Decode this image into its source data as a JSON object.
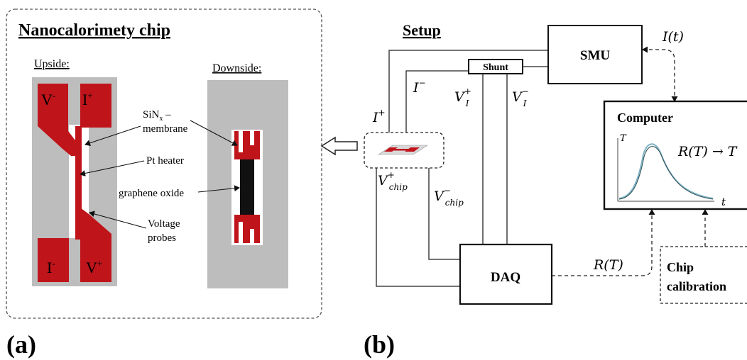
{
  "panel_a": {
    "title": "Nanocalorimety chip",
    "upside_label": "Upside:",
    "downside_label": "Downside:",
    "pad_v_minus": "V",
    "pad_v_minus_sup": "-",
    "pad_i_plus": "I",
    "pad_i_plus_sup": "+",
    "pad_i_minus": "I",
    "pad_i_minus_sup": "-",
    "pad_v_plus": "V",
    "pad_v_plus_sup": "+",
    "annot_membrane_1": "SiN",
    "annot_membrane_sub": "x",
    "annot_membrane_dash": " –",
    "annot_membrane_2": "membrane",
    "annot_heater": "Pt heater",
    "annot_graphene": "graphene oxide",
    "annot_probes_1": "Voltage",
    "annot_probes_2": "probes",
    "panel_letter": "(a)"
  },
  "panel_b": {
    "title": "Setup",
    "smu": "SMU",
    "shunt": "Shunt",
    "computer": "Computer",
    "daq": "DAQ",
    "chip_calibration_1": "Chip",
    "chip_calibration_2": "calibration",
    "label_i_t": "I(t)",
    "label_i_minus": "I",
    "label_i_minus_sup": "−",
    "label_vi_plus": "V",
    "label_vi_plus_sub": "I",
    "label_vi_plus_sup": "+",
    "label_vi_minus": "V",
    "label_vi_minus_sub": "I",
    "label_vi_minus_sup": "−",
    "label_i_plus": "I",
    "label_i_plus_sup": "+",
    "label_vchip_plus": "V",
    "label_vchip_plus_sub": "chip",
    "label_vchip_plus_sup": "+",
    "label_vchip_minus": "V",
    "label_vchip_minus_sub": "chip",
    "label_vchip_minus_sup": "−",
    "label_r_t": "R(T)",
    "screen_formula": "R(T) → T",
    "screen_axis_y": "T",
    "screen_axis_x": "t",
    "panel_letter": "(b)"
  },
  "colors": {
    "chip_red": "#c0141b",
    "chip_gray": "#bdbdbd",
    "membrane_black": "#111111",
    "curve_blue": "#7fb3c8",
    "curve_dark": "#2f4f4f"
  }
}
